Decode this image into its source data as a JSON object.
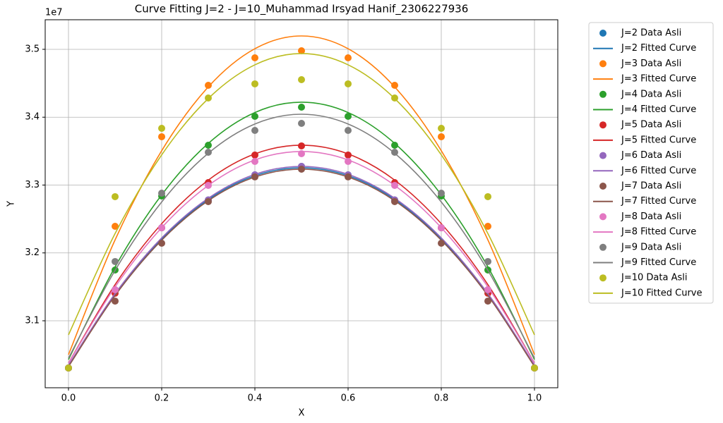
{
  "chart_data": {
    "type": "scatter",
    "title": "Curve Fitting J=2 - J=10_Muhammad Irsyad Hanif_2306227936",
    "x_label": "X",
    "y_label": "Y",
    "y_offset_label": "1e7",
    "x": [
      0,
      0.1,
      0.2,
      0.3,
      0.4,
      0.5,
      0.6,
      0.7,
      0.8,
      0.9,
      1.0
    ],
    "xlim": [
      -0.05,
      1.05
    ],
    "xticks": [
      {
        "value": 0,
        "label": "0.0"
      },
      0.2,
      0.4,
      0.6,
      0.8,
      {
        "value": 1,
        "label": "1.0"
      }
    ],
    "ylim": [
      3.0013,
      3.5436
    ],
    "yticks": [
      3.1,
      3.2,
      3.3,
      3.4,
      3.5
    ],
    "grid": true,
    "legend": "outside right",
    "series": [
      {
        "name": "J=2 Data Asli",
        "style": "points",
        "color": "#1f77b4",
        "values": [
          3.0304,
          3.1457,
          3.237,
          3.278,
          3.315,
          3.3275,
          3.315,
          3.278,
          3.237,
          3.1457,
          3.0304
        ]
      },
      {
        "name": "J=2 Fitted Curve",
        "style": "line",
        "color": "#1f77b4",
        "values": [
          3.0336,
          3.1387,
          3.2204,
          3.2788,
          3.3138,
          3.3255,
          3.3138,
          3.2788,
          3.2204,
          3.1387,
          3.0336
        ]
      },
      {
        "name": "J=3 Data Asli",
        "style": "points",
        "color": "#ff7f0e",
        "values": [
          3.0304,
          3.2392,
          3.3712,
          3.447,
          3.4875,
          3.4979,
          3.4875,
          3.447,
          3.3712,
          3.2392,
          3.0304
        ]
      },
      {
        "name": "J=3 Fitted Curve",
        "style": "line",
        "color": "#ff7f0e",
        "values": [
          3.0501,
          3.2192,
          3.3506,
          3.4446,
          3.5009,
          3.5197,
          3.5009,
          3.4446,
          3.3506,
          3.2192,
          3.0501
        ]
      },
      {
        "name": "J=4 Data Asli",
        "style": "points",
        "color": "#2ca02c",
        "values": [
          3.0304,
          3.1748,
          3.2839,
          3.3587,
          3.4013,
          3.4148,
          3.4013,
          3.3587,
          3.2839,
          3.1748,
          3.0304
        ]
      },
      {
        "name": "J=4 Fitted Curve",
        "style": "line",
        "color": "#2ca02c",
        "values": [
          3.0429,
          3.1794,
          3.2856,
          3.3614,
          3.4069,
          3.4221,
          3.4069,
          3.3614,
          3.2856,
          3.1794,
          3.0429
        ]
      },
      {
        "name": "J=5 Data Asli",
        "style": "points",
        "color": "#d62728",
        "values": [
          3.0304,
          3.1405,
          3.237,
          3.3036,
          3.3442,
          3.3577,
          3.3442,
          3.3036,
          3.237,
          3.1405,
          3.0304
        ]
      },
      {
        "name": "J=5 Fitted Curve",
        "style": "line",
        "color": "#d62728",
        "values": [
          3.0377,
          3.1533,
          3.2431,
          3.3073,
          3.3459,
          3.3587,
          3.3459,
          3.3073,
          3.2431,
          3.1533,
          3.0377
        ]
      },
      {
        "name": "J=6 Data Asli",
        "style": "points",
        "color": "#9467bd",
        "values": [
          3.0304,
          3.1457,
          3.237,
          3.278,
          3.315,
          3.3275,
          3.315,
          3.278,
          3.237,
          3.1457,
          3.0304
        ]
      },
      {
        "name": "J=6 Fitted Curve",
        "style": "line",
        "color": "#9467bd",
        "values": [
          3.0346,
          3.14,
          3.2221,
          3.2806,
          3.3158,
          3.3275,
          3.3158,
          3.2806,
          3.2221,
          3.14,
          3.0346
        ]
      },
      {
        "name": "J=7 Data Asli",
        "style": "points",
        "color": "#8c564b",
        "values": [
          3.0304,
          3.129,
          3.2143,
          3.2756,
          3.312,
          3.3234,
          3.312,
          3.2756,
          3.2143,
          3.129,
          3.0304
        ]
      },
      {
        "name": "J=7 Fitted Curve",
        "style": "line",
        "color": "#8c564b",
        "values": [
          3.0325,
          3.1372,
          3.2187,
          3.2769,
          3.3118,
          3.3234,
          3.3118,
          3.2769,
          3.2187,
          3.1372,
          3.0325
        ]
      },
      {
        "name": "J=8 Data Asli",
        "style": "points",
        "color": "#e377c2",
        "values": [
          3.0304,
          3.1457,
          3.237,
          3.2995,
          3.3348,
          3.3462,
          3.3348,
          3.2995,
          3.237,
          3.1457,
          3.0304
        ]
      },
      {
        "name": "J=8 Fitted Curve",
        "style": "line",
        "color": "#e377c2",
        "values": [
          3.0377,
          3.1499,
          3.2372,
          3.2995,
          3.337,
          3.3494,
          3.337,
          3.2995,
          3.2372,
          3.1499,
          3.0377
        ]
      },
      {
        "name": "J=9 Data Asli",
        "style": "points",
        "color": "#7f7f7f",
        "values": [
          3.0304,
          3.1873,
          3.288,
          3.3483,
          3.3805,
          3.3909,
          3.3805,
          3.3483,
          3.288,
          3.1873,
          3.0304
        ]
      },
      {
        "name": "J=9 Fitted Curve",
        "style": "line",
        "color": "#7f7f7f",
        "values": [
          3.0449,
          3.1743,
          3.275,
          3.3469,
          3.39,
          3.4044,
          3.39,
          3.3469,
          3.275,
          3.1743,
          3.0449
        ]
      },
      {
        "name": "J=10 Data Asli",
        "style": "points",
        "color": "#bcbd22",
        "values": [
          3.0304,
          3.2829,
          3.3836,
          3.4283,
          3.4491,
          3.4553,
          3.4491,
          3.4283,
          3.3836,
          3.2829,
          3.0304
        ]
      },
      {
        "name": "J=10 Fitted Curve",
        "style": "line",
        "color": "#bcbd22",
        "values": [
          3.0792,
          3.2285,
          3.3445,
          3.4275,
          3.4772,
          3.4938,
          3.4772,
          3.4275,
          3.3445,
          3.2285,
          3.0792
        ]
      }
    ]
  }
}
